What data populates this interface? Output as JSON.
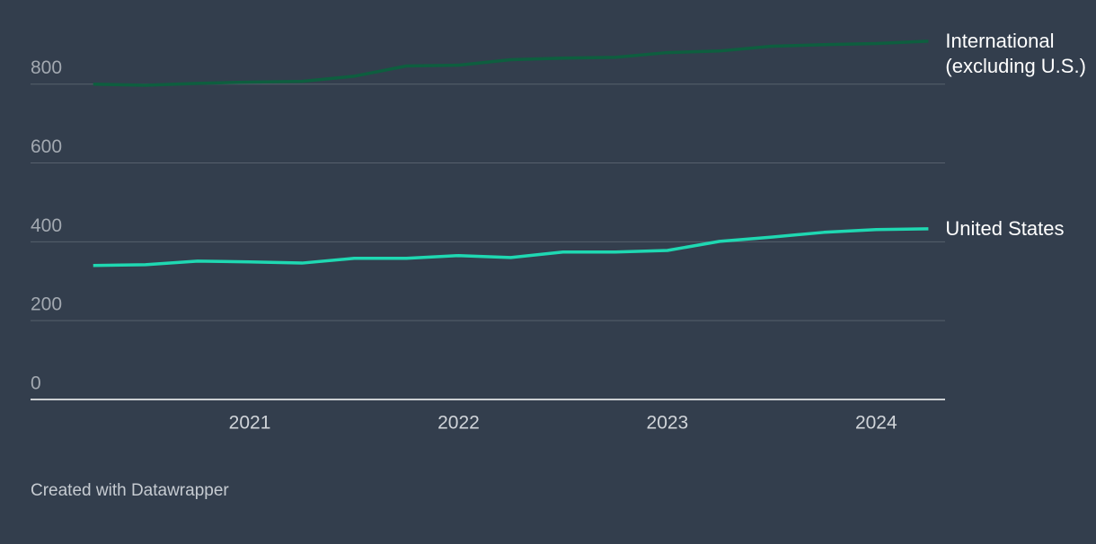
{
  "chart_data": {
    "type": "line",
    "x": [
      2020.25,
      2020.5,
      2020.75,
      2021,
      2021.25,
      2021.5,
      2021.75,
      2022,
      2022.25,
      2022.5,
      2022.75,
      2023,
      2023.25,
      2023.5,
      2023.75,
      2024,
      2024.25
    ],
    "series": [
      {
        "name": "International (excluding U.S.)",
        "color": "#0e5e3f",
        "values": [
          800,
          797,
          802,
          805,
          807,
          820,
          846,
          848,
          862,
          866,
          868,
          880,
          884,
          896,
          900,
          903,
          909
        ]
      },
      {
        "name": "United States",
        "color": "#1fd8b2",
        "values": [
          340,
          342,
          351,
          349,
          346,
          358,
          358,
          365,
          360,
          374,
          374,
          378,
          401,
          412,
          424,
          431,
          433
        ]
      }
    ],
    "xlim": [
      2019.95,
      2024.33
    ],
    "xticks": [
      2021,
      2022,
      2023,
      2024
    ],
    "ylim": [
      0,
      920
    ],
    "yticks": [
      0,
      200,
      400,
      600,
      800
    ],
    "grid": true,
    "footer": "Created with Datawrapper"
  }
}
